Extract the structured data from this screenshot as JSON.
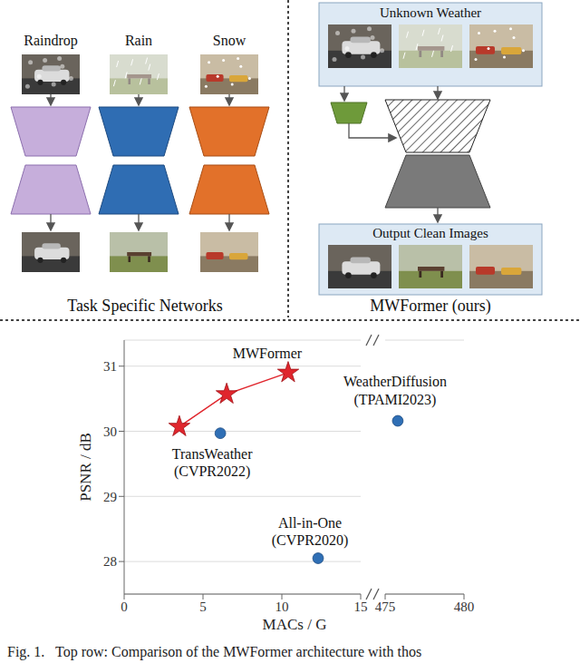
{
  "diagram": {
    "left_panel": {
      "title": "Task Specific Networks",
      "tasks": [
        "Raindrop",
        "Rain",
        "Snow"
      ]
    },
    "right_panel": {
      "title": "MWFormer (ours)",
      "input_label": "Unknown Weather",
      "output_label": "Output Clean Images"
    }
  },
  "chart_data": {
    "type": "scatter",
    "x_label": "MACs / G",
    "y_label": "PSNR / dB",
    "xlim": [
      0,
      480
    ],
    "x_break": [
      15,
      475
    ],
    "xticks": [
      0,
      5,
      10,
      15,
      475,
      480
    ],
    "ylim": [
      27.5,
      31.4
    ],
    "yticks": [
      28,
      29,
      30,
      31
    ],
    "grid": true,
    "series": [
      {
        "name": "MWFormer",
        "color": "#e0262d",
        "marker": "star",
        "line_style": "solid",
        "x": [
          3.5,
          6.5,
          10.4
        ],
        "values": [
          30.07,
          30.57,
          30.9
        ]
      },
      {
        "name": "TransWeather",
        "annotation": "(CVPR2022)",
        "color": "#2f6fb5",
        "marker": "circle",
        "x": [
          6.1
        ],
        "values": [
          29.97
        ]
      },
      {
        "name": "All-in-One",
        "annotation": "(CVPR2020)",
        "color": "#2f6fb5",
        "marker": "circle",
        "x": [
          12.3
        ],
        "values": [
          28.05
        ]
      },
      {
        "name": "WeatherDiffusion",
        "annotation": "(TPAMI2023)",
        "color": "#2f6fb5",
        "marker": "circle",
        "x": [
          475.8
        ],
        "values": [
          30.16
        ]
      }
    ]
  },
  "caption": "Fig. 1.   Top row: Comparison of the MWFormer architecture with thos"
}
